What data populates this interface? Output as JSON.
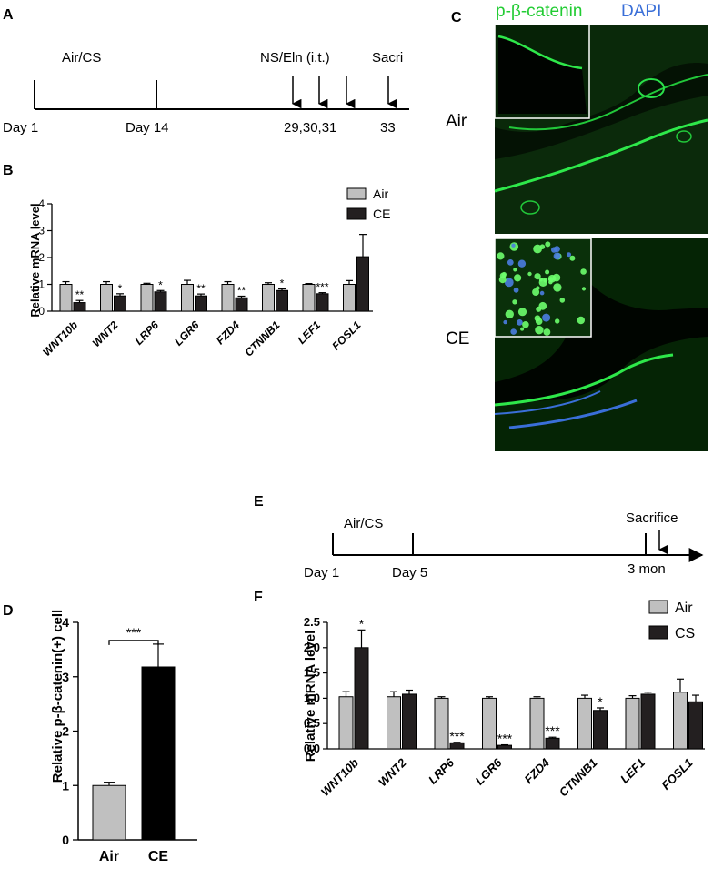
{
  "panels": {
    "A": {
      "label": "A",
      "segment_label": "Air/CS",
      "event_label": "NS/Eln (i.t.)",
      "sac_label": "Sacri",
      "day_labels": [
        "Day 1",
        "Day 14",
        "29,30,31",
        "33"
      ]
    },
    "C": {
      "label": "C",
      "stain1": "p-β-catenin",
      "stain2": "DAPI",
      "stain1_color": "#22cc33",
      "stain2_color": "#3a6fd8",
      "row_labels": [
        "Air",
        "CE"
      ]
    },
    "D": {
      "label": "D",
      "sig": "***"
    },
    "E": {
      "label": "E",
      "segment_label": "Air/CS",
      "sac_label": "Sacrifice",
      "day_labels": [
        "Day 1",
        "Day 5",
        "3 mon"
      ]
    },
    "F": {
      "label": "F"
    }
  },
  "colors": {
    "air": "#c0c0c0",
    "treated": "#231f20",
    "panel_D_treated": "#000000"
  },
  "chart_data": [
    {
      "id": "B",
      "label": "B",
      "type": "bar",
      "ylabel": "Relative mRNA level",
      "ylim": [
        0,
        4
      ],
      "yticks": [
        "0",
        "1",
        "2",
        "3",
        "4"
      ],
      "categories": [
        "WNT10b",
        "WNT2",
        "LRP6",
        "LGR6",
        "FZD4",
        "CTNNB1",
        "LEF1",
        "FOSL1"
      ],
      "series": [
        {
          "name": "Air",
          "values": [
            1.0,
            1.0,
            1.0,
            1.0,
            1.0,
            1.0,
            1.0,
            1.0
          ],
          "errors": [
            0.1,
            0.1,
            0.04,
            0.15,
            0.1,
            0.06,
            0.03,
            0.14
          ]
        },
        {
          "name": "CE",
          "values": [
            0.32,
            0.57,
            0.72,
            0.57,
            0.5,
            0.77,
            0.65,
            2.03
          ],
          "errors": [
            0.08,
            0.08,
            0.05,
            0.07,
            0.06,
            0.06,
            0.04,
            0.83
          ]
        }
      ],
      "significance": [
        "**",
        "*",
        "*",
        "**",
        "**",
        "*",
        "***",
        ""
      ],
      "legend": "top-right"
    },
    {
      "id": "D",
      "label": "D",
      "type": "bar",
      "ylabel": "Relative p-β-catenin(+) cell",
      "ylim": [
        0,
        4
      ],
      "yticks": [
        "0",
        "1",
        "2",
        "3",
        "4"
      ],
      "categories": [
        "Air",
        "CE"
      ],
      "values": [
        1.0,
        3.18
      ],
      "errors": [
        0.06,
        0.42
      ]
    },
    {
      "id": "F",
      "label": "F",
      "type": "bar",
      "ylabel": "Relative mRNA level",
      "ylim": [
        0,
        2.5
      ],
      "yticks": [
        "0.0",
        "0.5",
        "1.0",
        "1.5",
        "2.0",
        "2.5"
      ],
      "categories": [
        "WNT10b",
        "WNT2",
        "LRP6",
        "LGR6",
        "FZD4",
        "CTNNB1",
        "LEF1",
        "FOSL1"
      ],
      "series": [
        {
          "name": "Air",
          "values": [
            1.03,
            1.03,
            1.0,
            1.0,
            1.0,
            1.0,
            1.0,
            1.12
          ],
          "errors": [
            0.1,
            0.1,
            0.03,
            0.03,
            0.03,
            0.06,
            0.05,
            0.26
          ]
        },
        {
          "name": "CS",
          "values": [
            2.0,
            1.08,
            0.12,
            0.07,
            0.21,
            0.76,
            1.08,
            0.93
          ],
          "errors": [
            0.35,
            0.08,
            0.01,
            0.01,
            0.02,
            0.05,
            0.04,
            0.13
          ]
        }
      ],
      "significance": [
        "*",
        "",
        "***",
        "***",
        "***",
        "*",
        "",
        ""
      ],
      "legend": "top-right"
    }
  ]
}
